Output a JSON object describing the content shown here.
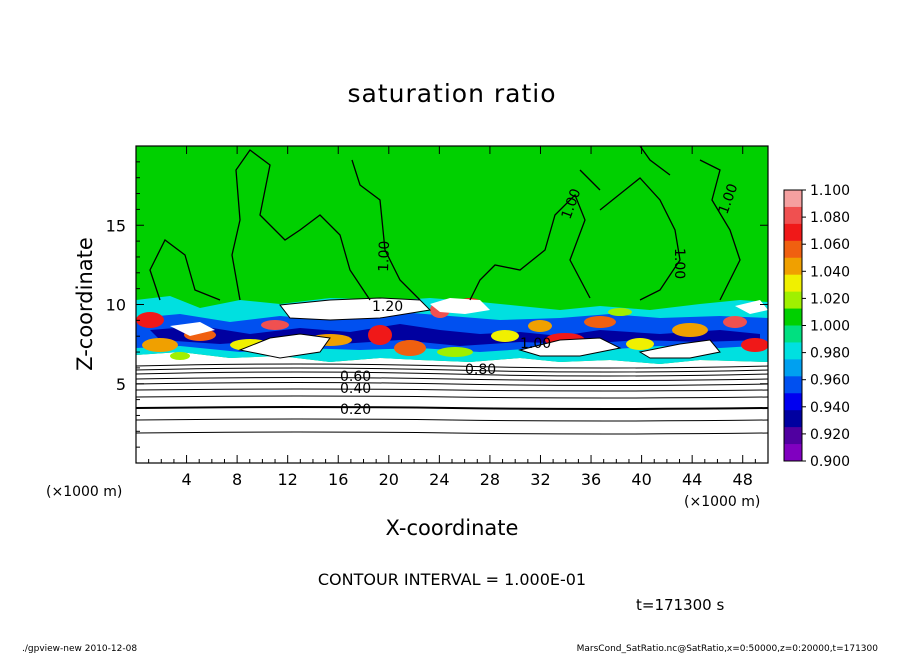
{
  "chart_data": {
    "type": "heatmap",
    "title": "saturation ratio",
    "xlabel": "X-coordinate",
    "ylabel": "Z-coordinate",
    "x_units_left": "(×1000 m)",
    "x_units_right": "(×1000 m)",
    "xlim": [
      0,
      50
    ],
    "ylim": [
      0,
      20
    ],
    "x_ticks": [
      "4",
      "8",
      "12",
      "16",
      "20",
      "24",
      "28",
      "32",
      "36",
      "40",
      "44",
      "48"
    ],
    "y_ticks": [
      "5",
      "10",
      "15"
    ],
    "x_tick_values": [
      4,
      8,
      12,
      16,
      20,
      24,
      28,
      32,
      36,
      40,
      44,
      48
    ],
    "y_tick_values": [
      5,
      10,
      15
    ],
    "colorbar": {
      "labels": [
        "1.100",
        "1.080",
        "1.060",
        "1.040",
        "1.020",
        "1.000",
        "0.980",
        "0.960",
        "0.940",
        "0.920",
        "0.900"
      ],
      "colors": [
        "#f5a0a0",
        "#f05050",
        "#f01818",
        "#f06010",
        "#f0a000",
        "#f0f000",
        "#a0f000",
        "#00d000",
        "#00e080",
        "#00e0e0",
        "#00a0f0",
        "#0050f0",
        "#0000f0",
        "#0000a0",
        "#5000a0",
        "#8000c0"
      ]
    },
    "contour_labels": [
      "1.20",
      "1.00",
      "1.00",
      "1.00",
      "1.00",
      "0.80",
      "0.60",
      "0.40",
      "0.20",
      "1.00"
    ],
    "contour_interval_text": "CONTOUR INTERVAL = 1.000E-01",
    "time_text": "t=171300 s"
  },
  "footer": {
    "left": "./gpview-new   2010-12-08",
    "right": "MarsCond_SatRatio.nc@SatRatio,x=0:50000,z=0:20000,t=171300"
  },
  "colors": {
    "background_field": "#00d000",
    "undersaturated": "#ffffff"
  }
}
